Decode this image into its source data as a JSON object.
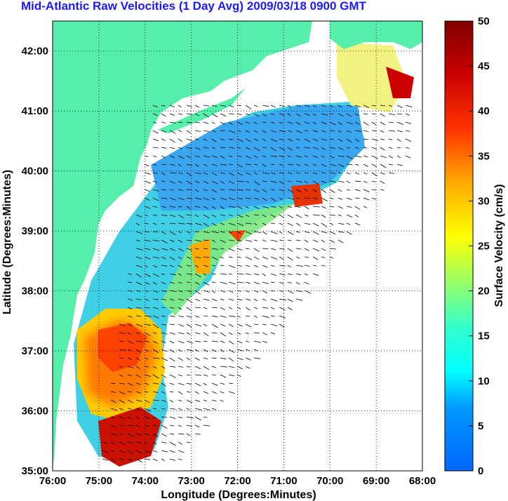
{
  "title": "Mid-Atlantic Raw Velocities (1 Day Avg) 2009/03/18 0900 GMT",
  "map": {
    "xlabel": "Longitude (Degrees:Minutes)",
    "ylabel": "Latitude (Degrees:Minutes)",
    "lon_range": [
      -76,
      -68
    ],
    "lat_range": [
      35,
      42.5
    ],
    "x_ticks": [
      {
        "value": -76,
        "label": "76:00"
      },
      {
        "value": -75,
        "label": "75:00"
      },
      {
        "value": -74,
        "label": "74:00"
      },
      {
        "value": -73,
        "label": "73:00"
      },
      {
        "value": -72,
        "label": "72:00"
      },
      {
        "value": -71,
        "label": "71:00"
      },
      {
        "value": -70,
        "label": "70:00"
      },
      {
        "value": -69,
        "label": "69:00"
      },
      {
        "value": -68,
        "label": "68:00"
      }
    ],
    "y_ticks": [
      {
        "value": 35,
        "label": "35:00"
      },
      {
        "value": 36,
        "label": "36:00"
      },
      {
        "value": 37,
        "label": "37:00"
      },
      {
        "value": 38,
        "label": "38:00"
      },
      {
        "value": 39,
        "label": "39:00"
      },
      {
        "value": 40,
        "label": "40:00"
      },
      {
        "value": 41,
        "label": "41:00"
      },
      {
        "value": 42,
        "label": "42:00"
      }
    ],
    "land_color": "#55eeaa",
    "grid": true
  },
  "colorbar": {
    "label": "Surface Velocity (cm/s)",
    "range": [
      0,
      50
    ],
    "ticks": [
      {
        "value": 0,
        "label": "0"
      },
      {
        "value": 5,
        "label": "5"
      },
      {
        "value": 10,
        "label": "10"
      },
      {
        "value": 15,
        "label": "15"
      },
      {
        "value": 20,
        "label": "20"
      },
      {
        "value": 25,
        "label": "25"
      },
      {
        "value": 30,
        "label": "30"
      },
      {
        "value": 35,
        "label": "35"
      },
      {
        "value": 40,
        "label": "40"
      },
      {
        "value": 45,
        "label": "45"
      },
      {
        "value": 50,
        "label": "50"
      }
    ],
    "colormap": "jet",
    "colors": [
      "#0000ff",
      "#0080ff",
      "#00ffff",
      "#80ff80",
      "#ffff00",
      "#ff8000",
      "#ff0000",
      "#800000"
    ]
  }
}
